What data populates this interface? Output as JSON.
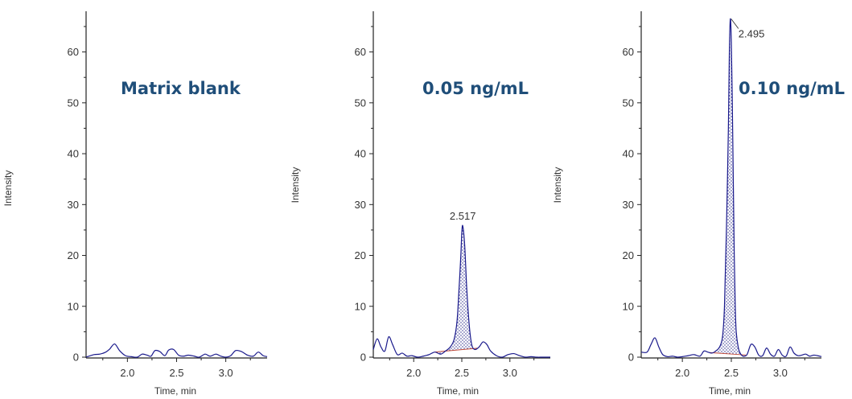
{
  "colors": {
    "trace": "#1a1a8c",
    "fill": "#2a2a8a",
    "baseline": "#c04a3a",
    "panel_label": "#1f4e79"
  },
  "chart_data": [
    {
      "type": "line",
      "label": "Matrix blank",
      "xlabel": "Time, min",
      "ylabel": "Intensity",
      "xlim": [
        1.58,
        3.42
      ],
      "ylim": [
        0,
        68
      ],
      "xticks": [
        "2.0",
        "2.5",
        "3.0"
      ],
      "yticks": [
        "0",
        "10",
        "20",
        "30",
        "40",
        "50",
        "60"
      ],
      "grid": false,
      "x": [
        1.58,
        1.66,
        1.72,
        1.78,
        1.82,
        1.87,
        1.92,
        1.98,
        2.04,
        2.1,
        2.15,
        2.2,
        2.24,
        2.28,
        2.33,
        2.38,
        2.42,
        2.47,
        2.52,
        2.57,
        2.62,
        2.68,
        2.73,
        2.79,
        2.84,
        2.9,
        2.95,
        3.0,
        3.05,
        3.1,
        3.16,
        3.22,
        3.28,
        3.33,
        3.38,
        3.42
      ],
      "y": [
        0,
        0.5,
        0.6,
        1.0,
        1.6,
        2.6,
        1.3,
        0.3,
        0.1,
        0.0,
        0.6,
        0.4,
        0.2,
        1.3,
        1.1,
        0.3,
        1.4,
        1.5,
        0.4,
        0.2,
        0.4,
        0.2,
        0.0,
        0.6,
        0.2,
        0.6,
        0.2,
        0.0,
        0.3,
        1.3,
        1.1,
        0.4,
        0.2,
        1.0,
        0.3,
        0.1
      ]
    },
    {
      "type": "line",
      "label": "0.05 ng/mL",
      "xlabel": "Time, min",
      "ylabel": "Intensity",
      "xlim": [
        1.58,
        3.42
      ],
      "ylim": [
        0,
        68
      ],
      "xticks": [
        "2.0",
        "2.5",
        "3.0"
      ],
      "yticks": [
        "0",
        "10",
        "20",
        "30",
        "40",
        "50",
        "60"
      ],
      "grid": false,
      "x": [
        1.58,
        1.62,
        1.66,
        1.7,
        1.74,
        1.78,
        1.83,
        1.88,
        1.93,
        1.98,
        2.04,
        2.1,
        2.16,
        2.22,
        2.28,
        2.33,
        2.38,
        2.42,
        2.45,
        2.47,
        2.49,
        2.5,
        2.51,
        2.53,
        2.55,
        2.57,
        2.59,
        2.61,
        2.64,
        2.68,
        2.72,
        2.76,
        2.8,
        2.86,
        2.92,
        2.98,
        3.04,
        3.1,
        3.16,
        3.22,
        3.28,
        3.34,
        3.42
      ],
      "y": [
        1.5,
        3.6,
        2.0,
        1.2,
        4.0,
        2.5,
        0.5,
        0.8,
        0.2,
        0.3,
        0.0,
        0.2,
        0.5,
        1.0,
        0.6,
        1.2,
        2.0,
        3.5,
        7.0,
        13.0,
        20.0,
        24.5,
        25.8,
        22.0,
        14.0,
        8.0,
        4.0,
        2.0,
        1.5,
        2.0,
        3.0,
        2.5,
        1.2,
        0.3,
        0.0,
        0.5,
        0.7,
        0.3,
        0.0,
        0.1,
        0.0,
        0.0,
        0.0
      ],
      "peak_start": 2.22,
      "peak_end": 2.66,
      "peak_label": "2.517",
      "peak_rt": 2.517
    },
    {
      "type": "line",
      "label": "0.10 ng/mL",
      "xlabel": "Time, min",
      "ylabel": "Intensity",
      "xlim": [
        1.58,
        3.42
      ],
      "ylim": [
        0,
        68
      ],
      "xticks": [
        "2.0",
        "2.5",
        "3.0"
      ],
      "yticks": [
        "0",
        "10",
        "20",
        "30",
        "40",
        "50",
        "60"
      ],
      "grid": false,
      "x": [
        1.58,
        1.64,
        1.68,
        1.72,
        1.76,
        1.8,
        1.85,
        1.9,
        1.95,
        2.0,
        2.06,
        2.12,
        2.18,
        2.22,
        2.26,
        2.3,
        2.34,
        2.38,
        2.41,
        2.43,
        2.45,
        2.47,
        2.48,
        2.49,
        2.5,
        2.51,
        2.52,
        2.53,
        2.54,
        2.55,
        2.57,
        2.59,
        2.62,
        2.66,
        2.7,
        2.74,
        2.78,
        2.82,
        2.86,
        2.9,
        2.94,
        2.98,
        3.02,
        3.06,
        3.1,
        3.14,
        3.18,
        3.22,
        3.26,
        3.3,
        3.34,
        3.38,
        3.42
      ],
      "y": [
        1.0,
        1.0,
        2.5,
        3.8,
        2.0,
        0.5,
        0.1,
        0.2,
        0.0,
        0.1,
        0.3,
        0.5,
        0.2,
        1.2,
        1.0,
        0.8,
        1.2,
        2.0,
        4.0,
        10.0,
        25.0,
        45.0,
        60.0,
        66.5,
        62.0,
        50.0,
        35.0,
        20.0,
        10.0,
        5.0,
        2.0,
        0.8,
        0.2,
        0.5,
        2.5,
        2.0,
        0.4,
        0.3,
        1.8,
        0.6,
        0.2,
        1.5,
        0.4,
        0.2,
        2.0,
        0.8,
        0.3,
        0.4,
        0.6,
        0.2,
        0.4,
        0.3,
        0.1
      ],
      "peak_start": 2.28,
      "peak_end": 2.65,
      "peak_label": "2.495",
      "peak_rt": 2.495
    }
  ]
}
